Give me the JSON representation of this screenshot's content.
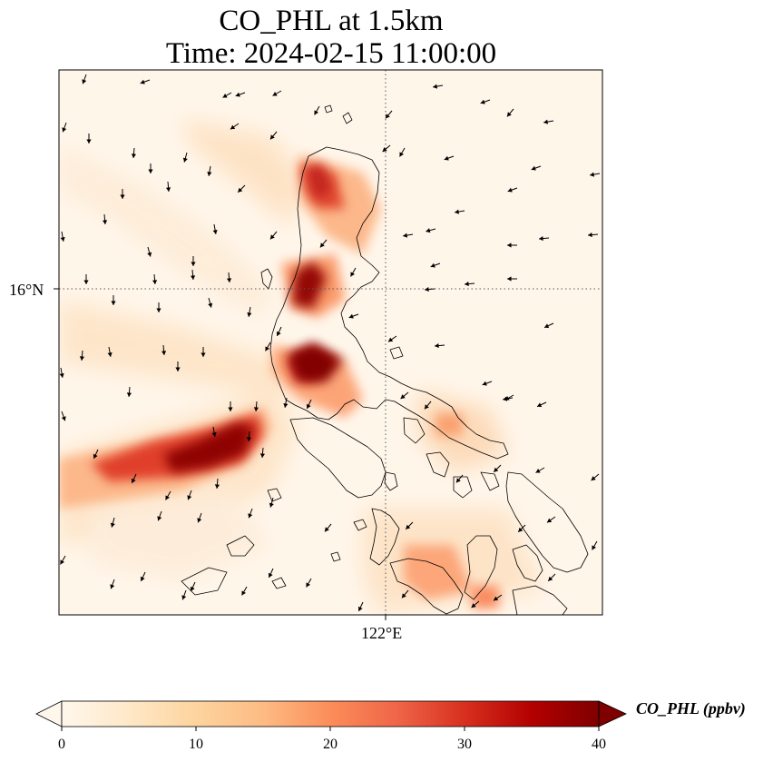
{
  "title_line1": "CO_PHL at 1.5km",
  "title_line2": "Time: 2024-02-15 11:00:00",
  "axes": {
    "y_tick_label": "16°N",
    "x_tick_label": "122°E"
  },
  "colorbar": {
    "label": "CO_PHL (ppbv)",
    "ticks": [
      "0",
      "10",
      "20",
      "30",
      "40"
    ],
    "min": 0,
    "max": 40,
    "colormap": "OrRd",
    "extend": "both",
    "colors": [
      "#fff7ec",
      "#fee8c8",
      "#fdd49e",
      "#fdbb84",
      "#fc8d59",
      "#ef6548",
      "#d7301f",
      "#b30000",
      "#7f0000"
    ]
  },
  "map": {
    "plume_concentration": "up to >40 ppbv over Luzon and westward over the South China Sea",
    "gridlines": "dotted at 16°N and 122°E"
  }
}
